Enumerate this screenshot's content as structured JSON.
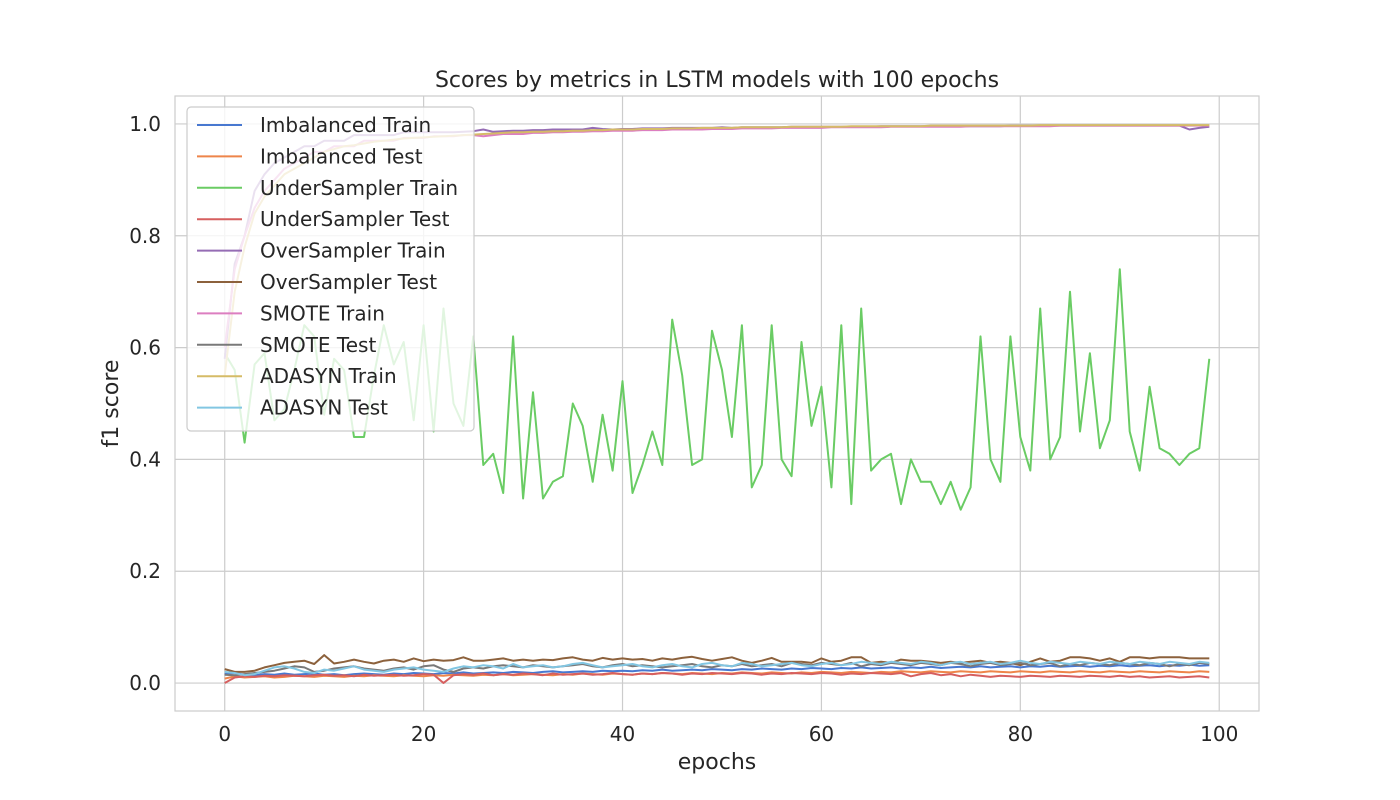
{
  "chart_data": {
    "type": "line",
    "title": "Scores by metrics in LSTM models with 100 epochs",
    "xlabel": "epochs",
    "ylabel": "f1 score",
    "xlim": [
      -5,
      104
    ],
    "ylim": [
      -0.05,
      1.05
    ],
    "xticks": [
      0,
      20,
      40,
      60,
      80,
      100
    ],
    "yticks": [
      0.0,
      0.2,
      0.4,
      0.6,
      0.8,
      1.0
    ],
    "xtick_labels": [
      "0",
      "20",
      "40",
      "60",
      "80",
      "100"
    ],
    "ytick_labels": [
      "0.0",
      "0.2",
      "0.4",
      "0.6",
      "0.8",
      "1.0"
    ],
    "grid": true,
    "legend_position": "upper-left",
    "series": [
      {
        "name": "Imbalanced Train",
        "color": "#4878d0",
        "values": [
          0.016,
          0.018,
          0.015,
          0.014,
          0.016,
          0.015,
          0.017,
          0.015,
          0.016,
          0.017,
          0.015,
          0.016,
          0.014,
          0.016,
          0.017,
          0.016,
          0.015,
          0.017,
          0.016,
          0.018,
          0.017,
          0.016,
          0.018,
          0.017,
          0.019,
          0.017,
          0.018,
          0.019,
          0.018,
          0.02,
          0.019,
          0.018,
          0.02,
          0.021,
          0.019,
          0.02,
          0.021,
          0.02,
          0.022,
          0.021,
          0.022,
          0.021,
          0.023,
          0.022,
          0.024,
          0.022,
          0.023,
          0.024,
          0.023,
          0.025,
          0.024,
          0.023,
          0.025,
          0.024,
          0.026,
          0.025,
          0.024,
          0.026,
          0.025,
          0.027,
          0.026,
          0.025,
          0.027,
          0.026,
          0.028,
          0.026,
          0.027,
          0.028,
          0.026,
          0.028,
          0.027,
          0.029,
          0.027,
          0.028,
          0.029,
          0.028,
          0.03,
          0.028,
          0.029,
          0.03,
          0.028,
          0.03,
          0.029,
          0.031,
          0.029,
          0.03,
          0.031,
          0.029,
          0.031,
          0.03,
          0.032,
          0.03,
          0.031,
          0.032,
          0.03,
          0.032,
          0.031,
          0.033,
          0.031,
          0.032
        ]
      },
      {
        "name": "Imbalanced Test",
        "color": "#ee854a",
        "values": [
          0.008,
          0.012,
          0.01,
          0.011,
          0.012,
          0.01,
          0.011,
          0.013,
          0.012,
          0.011,
          0.013,
          0.012,
          0.011,
          0.013,
          0.012,
          0.014,
          0.013,
          0.012,
          0.014,
          0.013,
          0.012,
          0.014,
          0.013,
          0.015,
          0.014,
          0.013,
          0.015,
          0.014,
          0.016,
          0.014,
          0.015,
          0.016,
          0.015,
          0.014,
          0.016,
          0.015,
          0.017,
          0.016,
          0.015,
          0.017,
          0.016,
          0.015,
          0.017,
          0.016,
          0.018,
          0.017,
          0.016,
          0.018,
          0.017,
          0.016,
          0.018,
          0.017,
          0.019,
          0.018,
          0.017,
          0.019,
          0.018,
          0.017,
          0.019,
          0.018,
          0.02,
          0.019,
          0.018,
          0.02,
          0.019,
          0.018,
          0.02,
          0.019,
          0.021,
          0.02,
          0.019,
          0.021,
          0.02,
          0.019,
          0.021,
          0.02,
          0.019,
          0.021,
          0.02,
          0.019,
          0.021,
          0.02,
          0.019,
          0.021,
          0.02,
          0.019,
          0.021,
          0.02,
          0.019,
          0.021,
          0.02,
          0.019,
          0.021,
          0.02,
          0.019,
          0.021,
          0.02,
          0.019,
          0.021,
          0.02
        ]
      },
      {
        "name": "UnderSampler Train",
        "color": "#6acc64",
        "values": [
          0.59,
          0.56,
          0.43,
          0.57,
          0.59,
          0.47,
          0.49,
          0.56,
          0.64,
          0.62,
          0.48,
          0.58,
          0.56,
          0.44,
          0.44,
          0.55,
          0.64,
          0.57,
          0.61,
          0.47,
          0.64,
          0.45,
          0.67,
          0.5,
          0.46,
          0.62,
          0.39,
          0.41,
          0.34,
          0.62,
          0.33,
          0.52,
          0.33,
          0.36,
          0.37,
          0.5,
          0.46,
          0.36,
          0.48,
          0.38,
          0.54,
          0.34,
          0.39,
          0.45,
          0.39,
          0.65,
          0.55,
          0.39,
          0.4,
          0.63,
          0.56,
          0.44,
          0.64,
          0.35,
          0.39,
          0.64,
          0.4,
          0.37,
          0.61,
          0.46,
          0.53,
          0.35,
          0.64,
          0.32,
          0.67,
          0.38,
          0.4,
          0.41,
          0.32,
          0.4,
          0.36,
          0.36,
          0.32,
          0.36,
          0.31,
          0.35,
          0.62,
          0.4,
          0.36,
          0.62,
          0.44,
          0.38,
          0.67,
          0.4,
          0.44,
          0.7,
          0.45,
          0.59,
          0.42,
          0.47,
          0.74,
          0.45,
          0.38,
          0.53,
          0.42,
          0.41,
          0.39,
          0.41,
          0.42,
          0.58
        ]
      },
      {
        "name": "UnderSampler Test",
        "color": "#d65f5f",
        "values": [
          0.0,
          0.01,
          0.012,
          0.011,
          0.013,
          0.012,
          0.014,
          0.013,
          0.012,
          0.014,
          0.015,
          0.013,
          0.014,
          0.012,
          0.015,
          0.013,
          0.014,
          0.015,
          0.013,
          0.014,
          0.016,
          0.015,
          0.0,
          0.014,
          0.016,
          0.015,
          0.017,
          0.014,
          0.016,
          0.015,
          0.017,
          0.016,
          0.014,
          0.017,
          0.015,
          0.016,
          0.017,
          0.015,
          0.016,
          0.018,
          0.016,
          0.015,
          0.017,
          0.016,
          0.018,
          0.017,
          0.015,
          0.017,
          0.016,
          0.018,
          0.017,
          0.016,
          0.018,
          0.017,
          0.015,
          0.017,
          0.016,
          0.018,
          0.017,
          0.016,
          0.018,
          0.017,
          0.015,
          0.017,
          0.016,
          0.018,
          0.017,
          0.016,
          0.018,
          0.012,
          0.016,
          0.018,
          0.014,
          0.016,
          0.012,
          0.015,
          0.013,
          0.011,
          0.013,
          0.012,
          0.011,
          0.013,
          0.012,
          0.011,
          0.013,
          0.012,
          0.011,
          0.013,
          0.012,
          0.011,
          0.013,
          0.011,
          0.012,
          0.01,
          0.011,
          0.012,
          0.01,
          0.011,
          0.012,
          0.01
        ]
      },
      {
        "name": "OverSampler Train",
        "color": "#956cb4",
        "values": [
          0.58,
          0.75,
          0.8,
          0.88,
          0.91,
          0.93,
          0.94,
          0.95,
          0.96,
          0.96,
          0.97,
          0.97,
          0.97,
          0.98,
          0.98,
          0.98,
          0.98,
          0.98,
          0.985,
          0.985,
          0.985,
          0.985,
          0.985,
          0.985,
          0.986,
          0.987,
          0.99,
          0.986,
          0.987,
          0.988,
          0.988,
          0.989,
          0.989,
          0.99,
          0.99,
          0.99,
          0.99,
          0.993,
          0.991,
          0.99,
          0.991,
          0.991,
          0.992,
          0.992,
          0.992,
          0.993,
          0.993,
          0.993,
          0.993,
          0.993,
          0.994,
          0.993,
          0.994,
          0.994,
          0.994,
          0.994,
          0.994,
          0.995,
          0.995,
          0.995,
          0.995,
          0.995,
          0.995,
          0.995,
          0.995,
          0.995,
          0.996,
          0.996,
          0.996,
          0.996,
          0.996,
          0.996,
          0.996,
          0.996,
          0.996,
          0.996,
          0.996,
          0.996,
          0.996,
          0.997,
          0.997,
          0.997,
          0.997,
          0.997,
          0.997,
          0.997,
          0.997,
          0.997,
          0.997,
          0.997,
          0.997,
          0.997,
          0.997,
          0.997,
          0.997,
          0.997,
          0.997,
          0.99,
          0.993,
          0.995
        ]
      },
      {
        "name": "OverSampler Test",
        "color": "#8c613c",
        "values": [
          0.025,
          0.02,
          0.02,
          0.022,
          0.028,
          0.032,
          0.036,
          0.038,
          0.04,
          0.034,
          0.05,
          0.035,
          0.038,
          0.042,
          0.038,
          0.035,
          0.04,
          0.042,
          0.038,
          0.044,
          0.039,
          0.042,
          0.04,
          0.041,
          0.046,
          0.04,
          0.04,
          0.042,
          0.044,
          0.04,
          0.042,
          0.04,
          0.042,
          0.041,
          0.044,
          0.046,
          0.042,
          0.04,
          0.045,
          0.042,
          0.044,
          0.042,
          0.043,
          0.04,
          0.044,
          0.042,
          0.045,
          0.047,
          0.043,
          0.04,
          0.043,
          0.046,
          0.04,
          0.036,
          0.04,
          0.045,
          0.038,
          0.038,
          0.038,
          0.036,
          0.044,
          0.038,
          0.04,
          0.046,
          0.046,
          0.036,
          0.038,
          0.036,
          0.042,
          0.04,
          0.04,
          0.038,
          0.036,
          0.038,
          0.036,
          0.038,
          0.04,
          0.036,
          0.038,
          0.036,
          0.032,
          0.038,
          0.044,
          0.038,
          0.04,
          0.046,
          0.046,
          0.044,
          0.04,
          0.044,
          0.038,
          0.046,
          0.046,
          0.044,
          0.046,
          0.046,
          0.046,
          0.044,
          0.044,
          0.044
        ]
      },
      {
        "name": "SMOTE Train",
        "color": "#dc7ec0",
        "values": [
          0.6,
          0.74,
          0.8,
          0.85,
          0.88,
          0.9,
          0.92,
          0.93,
          0.94,
          0.95,
          0.95,
          0.96,
          0.96,
          0.96,
          0.97,
          0.97,
          0.97,
          0.97,
          0.975,
          0.975,
          0.975,
          0.978,
          0.978,
          0.978,
          0.98,
          0.98,
          0.978,
          0.98,
          0.982,
          0.982,
          0.982,
          0.984,
          0.984,
          0.985,
          0.985,
          0.986,
          0.986,
          0.987,
          0.987,
          0.988,
          0.988,
          0.988,
          0.989,
          0.989,
          0.989,
          0.99,
          0.99,
          0.99,
          0.99,
          0.991,
          0.991,
          0.991,
          0.992,
          0.992,
          0.992,
          0.992,
          0.993,
          0.993,
          0.993,
          0.993,
          0.993,
          0.994,
          0.994,
          0.994,
          0.994,
          0.994,
          0.994,
          0.995,
          0.995,
          0.995,
          0.995,
          0.995,
          0.995,
          0.995,
          0.995,
          0.996,
          0.996,
          0.996,
          0.996,
          0.996,
          0.996,
          0.996,
          0.996,
          0.996,
          0.997,
          0.997,
          0.997,
          0.997,
          0.997,
          0.997,
          0.997,
          0.997,
          0.997,
          0.997,
          0.997,
          0.997,
          0.997,
          0.997,
          0.997,
          0.997
        ]
      },
      {
        "name": "SMOTE Test",
        "color": "#797979",
        "values": [
          0.015,
          0.014,
          0.016,
          0.018,
          0.02,
          0.022,
          0.026,
          0.03,
          0.028,
          0.02,
          0.022,
          0.026,
          0.028,
          0.03,
          0.026,
          0.024,
          0.022,
          0.026,
          0.028,
          0.024,
          0.03,
          0.032,
          0.024,
          0.02,
          0.026,
          0.028,
          0.026,
          0.03,
          0.032,
          0.03,
          0.028,
          0.032,
          0.03,
          0.028,
          0.03,
          0.032,
          0.034,
          0.03,
          0.028,
          0.032,
          0.034,
          0.03,
          0.032,
          0.03,
          0.028,
          0.03,
          0.032,
          0.034,
          0.03,
          0.028,
          0.032,
          0.03,
          0.034,
          0.03,
          0.032,
          0.034,
          0.03,
          0.036,
          0.034,
          0.032,
          0.036,
          0.034,
          0.032,
          0.036,
          0.03,
          0.034,
          0.032,
          0.036,
          0.034,
          0.032,
          0.036,
          0.034,
          0.032,
          0.036,
          0.034,
          0.03,
          0.034,
          0.036,
          0.032,
          0.034,
          0.036,
          0.032,
          0.034,
          0.036,
          0.03,
          0.034,
          0.032,
          0.036,
          0.034,
          0.032,
          0.036,
          0.034,
          0.032,
          0.036,
          0.034,
          0.03,
          0.034,
          0.032,
          0.036,
          0.034
        ]
      },
      {
        "name": "ADASYN Train",
        "color": "#d5bb67",
        "values": [
          0.55,
          0.7,
          0.78,
          0.84,
          0.87,
          0.89,
          0.91,
          0.92,
          0.93,
          0.94,
          0.95,
          0.955,
          0.96,
          0.962,
          0.965,
          0.968,
          0.97,
          0.972,
          0.974,
          0.975,
          0.976,
          0.977,
          0.978,
          0.979,
          0.98,
          0.981,
          0.982,
          0.983,
          0.984,
          0.985,
          0.985,
          0.986,
          0.986,
          0.987,
          0.987,
          0.988,
          0.988,
          0.989,
          0.989,
          0.99,
          0.99,
          0.99,
          0.991,
          0.991,
          0.991,
          0.992,
          0.992,
          0.992,
          0.993,
          0.993,
          0.993,
          0.993,
          0.994,
          0.994,
          0.994,
          0.994,
          0.994,
          0.995,
          0.995,
          0.995,
          0.995,
          0.995,
          0.995,
          0.996,
          0.996,
          0.996,
          0.996,
          0.996,
          0.996,
          0.996,
          0.996,
          0.997,
          0.997,
          0.997,
          0.997,
          0.997,
          0.997,
          0.997,
          0.997,
          0.997,
          0.997,
          0.997,
          0.998,
          0.998,
          0.998,
          0.998,
          0.998,
          0.998,
          0.998,
          0.998,
          0.998,
          0.998,
          0.998,
          0.998,
          0.998,
          0.998,
          0.998,
          0.998,
          0.998,
          0.998
        ]
      },
      {
        "name": "ADASYN Test",
        "color": "#82c6e2",
        "values": [
          0.02,
          0.018,
          0.014,
          0.016,
          0.022,
          0.028,
          0.03,
          0.026,
          0.02,
          0.018,
          0.024,
          0.022,
          0.026,
          0.03,
          0.024,
          0.022,
          0.02,
          0.024,
          0.026,
          0.028,
          0.024,
          0.022,
          0.02,
          0.026,
          0.03,
          0.028,
          0.032,
          0.03,
          0.026,
          0.034,
          0.028,
          0.03,
          0.032,
          0.028,
          0.03,
          0.034,
          0.036,
          0.032,
          0.028,
          0.03,
          0.032,
          0.034,
          0.03,
          0.028,
          0.032,
          0.034,
          0.03,
          0.028,
          0.034,
          0.036,
          0.032,
          0.03,
          0.036,
          0.034,
          0.03,
          0.032,
          0.034,
          0.036,
          0.032,
          0.03,
          0.034,
          0.036,
          0.032,
          0.034,
          0.038,
          0.036,
          0.034,
          0.038,
          0.036,
          0.034,
          0.038,
          0.036,
          0.032,
          0.036,
          0.038,
          0.034,
          0.036,
          0.038,
          0.034,
          0.036,
          0.04,
          0.036,
          0.034,
          0.038,
          0.036,
          0.034,
          0.038,
          0.036,
          0.034,
          0.038,
          0.036,
          0.034,
          0.038,
          0.036,
          0.034,
          0.038,
          0.036,
          0.034,
          0.038,
          0.036
        ]
      }
    ]
  }
}
